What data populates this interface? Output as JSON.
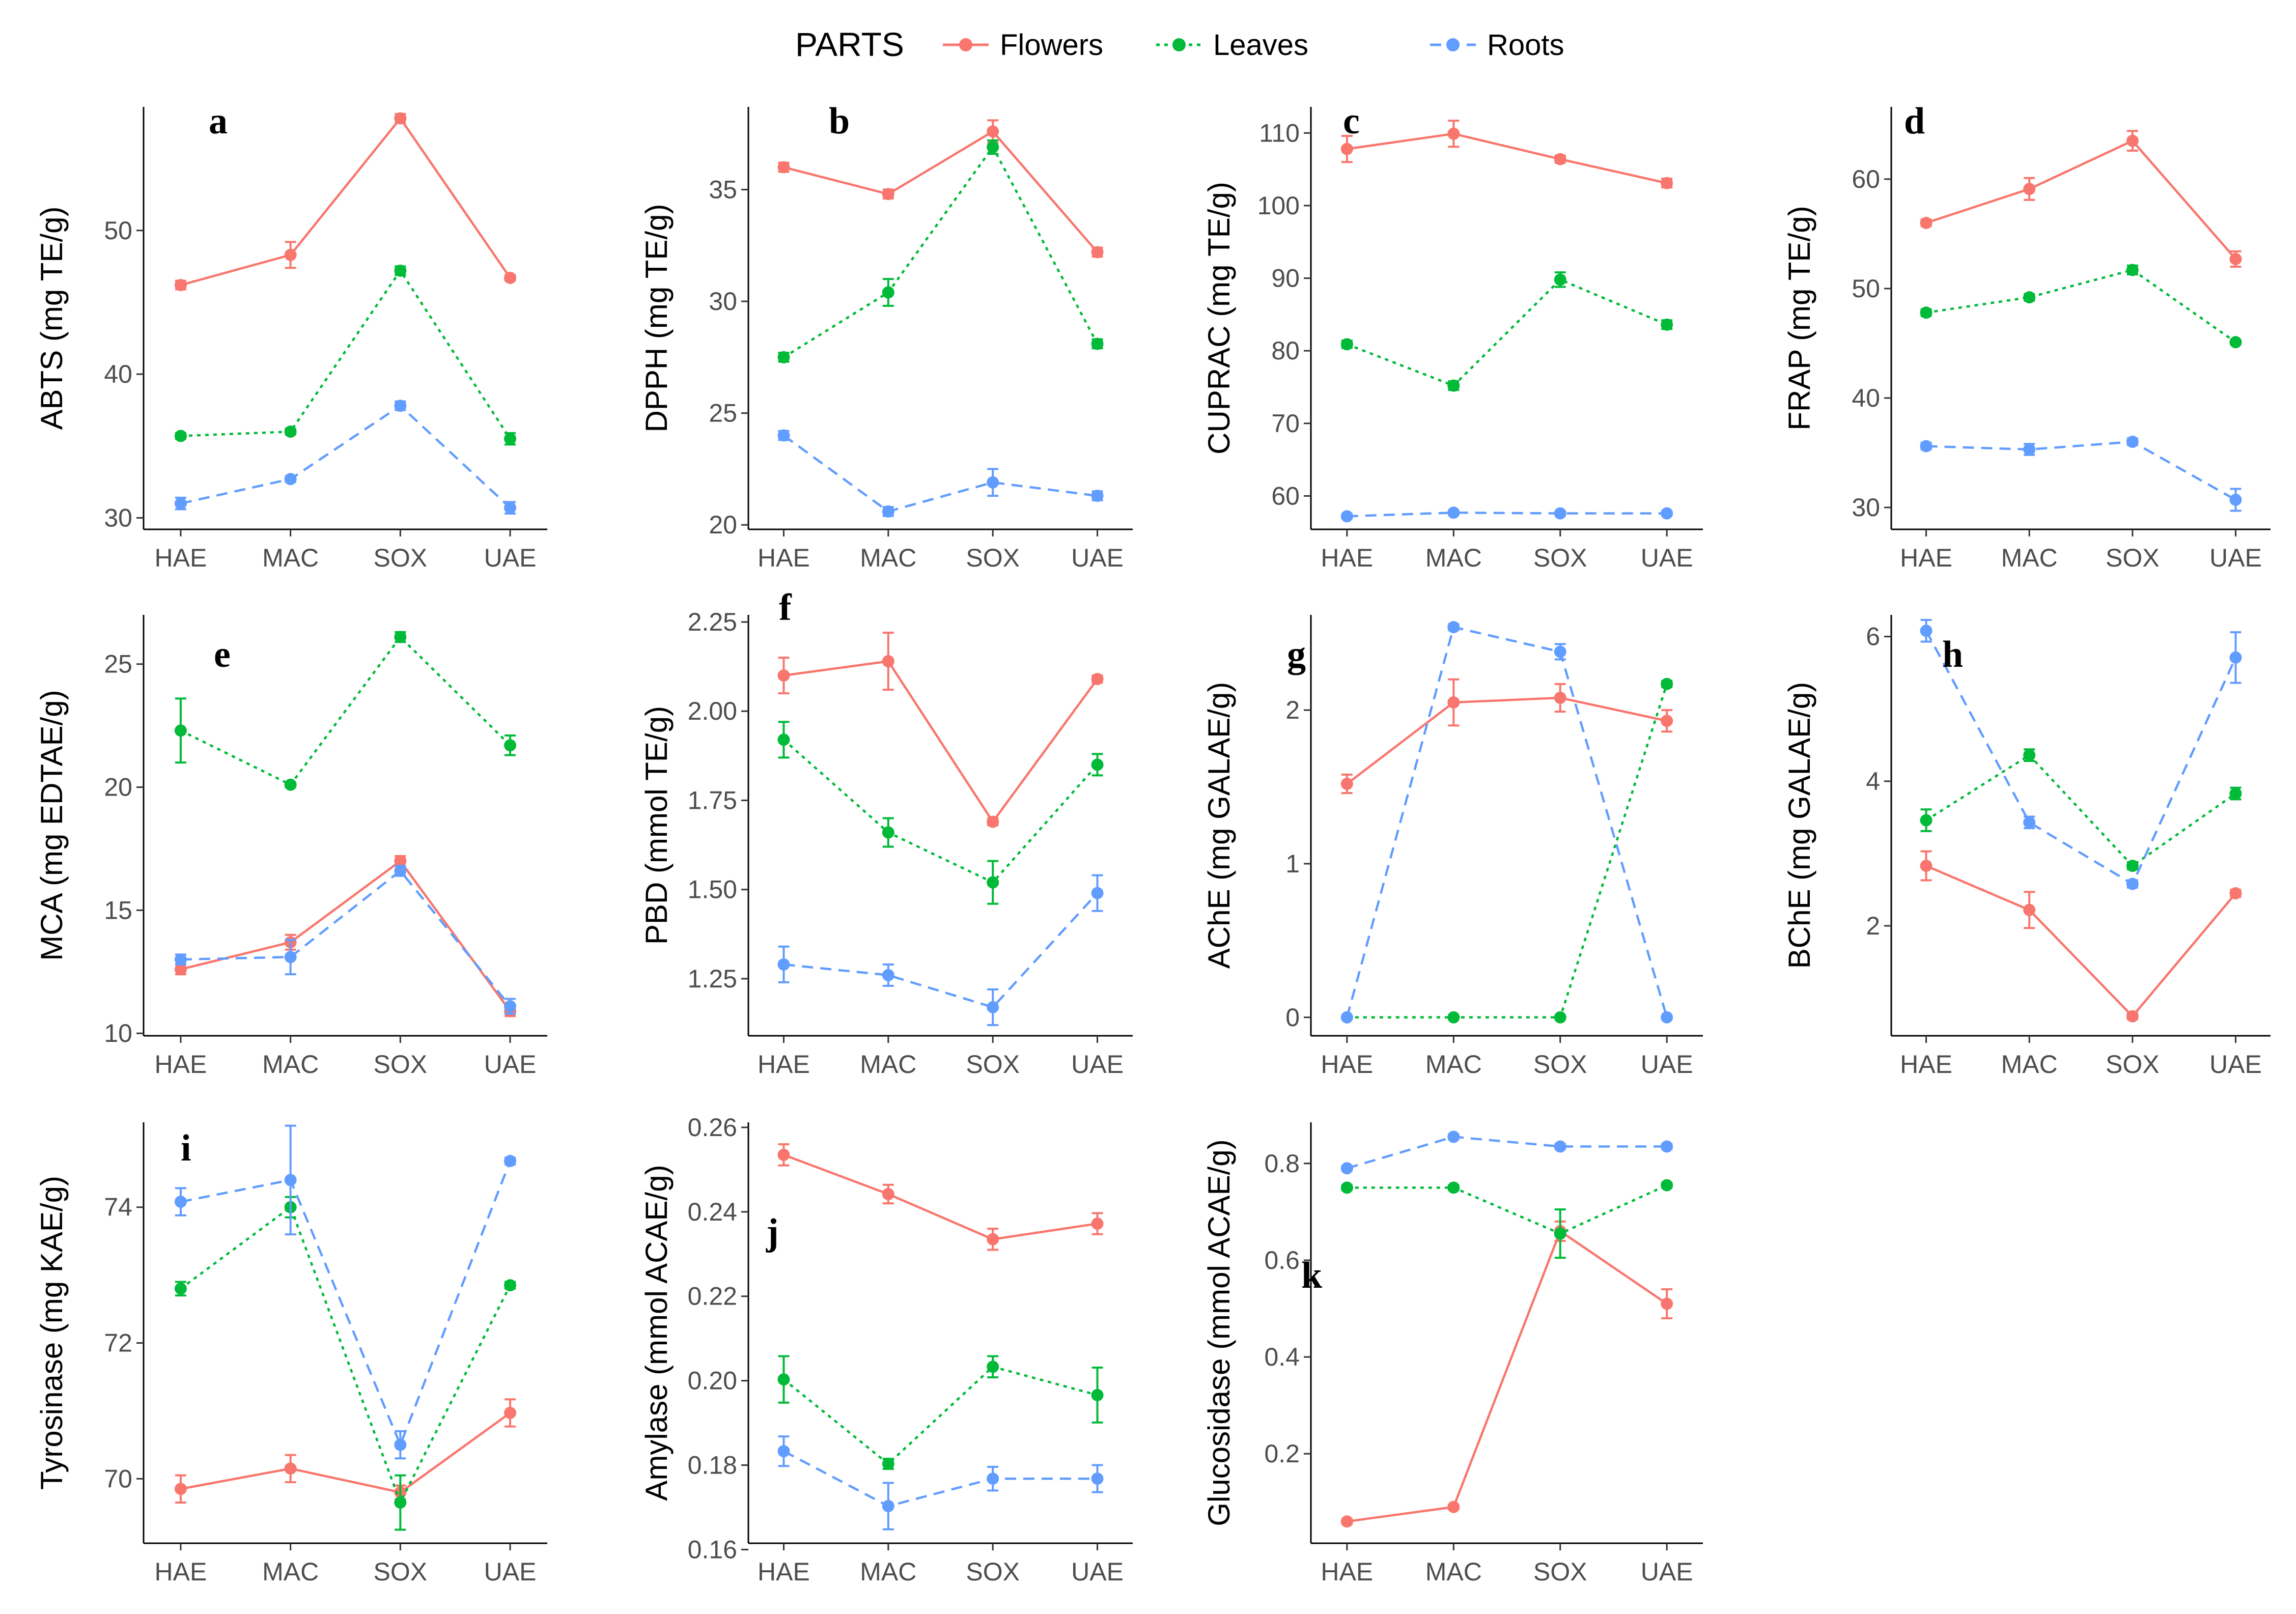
{
  "legend": {
    "title": "PARTS",
    "items": [
      {
        "key": "Flowers",
        "label": "Flowers",
        "color": "#F8766D",
        "dash": "solid"
      },
      {
        "key": "Leaves",
        "label": "Leaves",
        "color": "#00BA38",
        "dash": "dotted"
      },
      {
        "key": "Roots",
        "label": "Roots",
        "color": "#619CFF",
        "dash": "dashed"
      }
    ]
  },
  "chart_data": [
    {
      "type": "line",
      "panel": "a",
      "ylabel": "ABTS (mg TE/g)",
      "categories": [
        "HAE",
        "MAC",
        "SOX",
        "UAE"
      ],
      "ylim": [
        29.2,
        58.6
      ],
      "yticks": [
        30,
        40,
        50
      ],
      "series": [
        {
          "name": "Flowers",
          "values": [
            46.2,
            48.3,
            57.8,
            46.7
          ],
          "errors": [
            0.3,
            0.9,
            0.3,
            0.2
          ]
        },
        {
          "name": "Leaves",
          "values": [
            35.7,
            36.0,
            47.2,
            35.5
          ],
          "errors": [
            0.2,
            0.2,
            0.3,
            0.4
          ]
        },
        {
          "name": "Roots",
          "values": [
            31.0,
            32.7,
            37.8,
            30.7
          ],
          "errors": [
            0.4,
            0.2,
            0.3,
            0.4
          ]
        }
      ]
    },
    {
      "type": "line",
      "panel": "b",
      "ylabel": "DPPH (mg TE/g)",
      "categories": [
        "HAE",
        "MAC",
        "SOX",
        "UAE"
      ],
      "ylim": [
        19.8,
        38.7
      ],
      "yticks": [
        20,
        25,
        30,
        35
      ],
      "series": [
        {
          "name": "Flowers",
          "values": [
            36.0,
            34.8,
            37.6,
            32.2
          ],
          "errors": [
            0.2,
            0.2,
            0.5,
            0.2
          ]
        },
        {
          "name": "Leaves",
          "values": [
            27.5,
            30.4,
            36.9,
            28.1
          ],
          "errors": [
            0.2,
            0.6,
            0.3,
            0.2
          ]
        },
        {
          "name": "Roots",
          "values": [
            24.0,
            20.6,
            21.9,
            21.3
          ],
          "errors": [
            0.2,
            0.2,
            0.6,
            0.2
          ]
        }
      ]
    },
    {
      "type": "line",
      "panel": "c",
      "ylabel": "CUPRAC (mg TE/g)",
      "categories": [
        "HAE",
        "MAC",
        "SOX",
        "UAE"
      ],
      "ylim": [
        55.4,
        113.6
      ],
      "yticks": [
        60,
        70,
        80,
        90,
        100,
        110
      ],
      "series": [
        {
          "name": "Flowers",
          "values": [
            107.8,
            109.9,
            106.4,
            103.1
          ],
          "errors": [
            1.8,
            1.8,
            0.5,
            0.6
          ]
        },
        {
          "name": "Leaves",
          "values": [
            80.9,
            75.2,
            89.8,
            83.6
          ],
          "errors": [
            0.5,
            0.6,
            1.0,
            0.6
          ]
        },
        {
          "name": "Roots",
          "values": [
            57.2,
            57.7,
            57.6,
            57.6
          ],
          "errors": [
            0.3,
            0.3,
            0.3,
            0.3
          ]
        }
      ]
    },
    {
      "type": "line",
      "panel": "d",
      "ylabel": "FRAP (mg TE/g)",
      "categories": [
        "HAE",
        "MAC",
        "SOX",
        "UAE"
      ],
      "ylim": [
        28.0,
        66.6
      ],
      "yticks": [
        30,
        40,
        50,
        60
      ],
      "series": [
        {
          "name": "Flowers",
          "values": [
            56.0,
            59.1,
            63.5,
            52.7
          ],
          "errors": [
            0.3,
            1.0,
            0.9,
            0.7
          ]
        },
        {
          "name": "Leaves",
          "values": [
            47.8,
            49.2,
            51.7,
            45.1
          ],
          "errors": [
            0.3,
            0.3,
            0.4,
            0.2
          ]
        },
        {
          "name": "Roots",
          "values": [
            35.6,
            35.3,
            36.0,
            30.7
          ],
          "errors": [
            0.3,
            0.5,
            0.3,
            1.0
          ]
        }
      ]
    },
    {
      "type": "line",
      "panel": "e",
      "ylabel": "MCA (mg EDTAE/g)",
      "categories": [
        "HAE",
        "MAC",
        "SOX",
        "UAE"
      ],
      "ylim": [
        9.9,
        27.0
      ],
      "yticks": [
        10,
        15,
        20,
        25
      ],
      "series": [
        {
          "name": "Flowers",
          "values": [
            12.6,
            13.7,
            17.0,
            10.9
          ],
          "errors": [
            0.2,
            0.3,
            0.2,
            0.2
          ]
        },
        {
          "name": "Leaves",
          "values": [
            22.3,
            20.1,
            26.1,
            21.7
          ],
          "errors": [
            1.3,
            0.1,
            0.2,
            0.4
          ]
        },
        {
          "name": "Roots",
          "values": [
            13.0,
            13.1,
            16.6,
            11.1
          ],
          "errors": [
            0.2,
            0.7,
            0.2,
            0.3
          ]
        }
      ]
    },
    {
      "type": "line",
      "panel": "f",
      "ylabel": "PBD (mmol TE/g)",
      "categories": [
        "HAE",
        "MAC",
        "SOX",
        "UAE"
      ],
      "ylim": [
        1.09,
        2.27
      ],
      "yticks": [
        1.25,
        1.5,
        1.75,
        2.0,
        2.25
      ],
      "tick_labels": [
        "1.25",
        "1.50",
        "1.75",
        "2.00",
        "2.25"
      ],
      "series": [
        {
          "name": "Flowers",
          "values": [
            2.1,
            2.14,
            1.69,
            2.09
          ],
          "errors": [
            0.05,
            0.08,
            0.01,
            0.01
          ]
        },
        {
          "name": "Leaves",
          "values": [
            1.92,
            1.66,
            1.52,
            1.85
          ],
          "errors": [
            0.05,
            0.04,
            0.06,
            0.03
          ]
        },
        {
          "name": "Roots",
          "values": [
            1.29,
            1.26,
            1.17,
            1.49
          ],
          "errors": [
            0.05,
            0.03,
            0.05,
            0.05
          ]
        }
      ]
    },
    {
      "type": "line",
      "panel": "g",
      "ylabel": "AChE (mg GALAE/g)",
      "categories": [
        "HAE",
        "MAC",
        "SOX",
        "UAE"
      ],
      "ylim": [
        -0.12,
        2.62
      ],
      "yticks": [
        0,
        1,
        2
      ],
      "series": [
        {
          "name": "Flowers",
          "values": [
            1.52,
            2.05,
            2.08,
            1.93
          ],
          "errors": [
            0.06,
            0.15,
            0.09,
            0.07
          ]
        },
        {
          "name": "Leaves",
          "values": [
            0.0,
            0.0,
            0.0,
            2.17
          ],
          "errors": [
            0,
            0,
            0,
            0.02
          ]
        },
        {
          "name": "Roots",
          "values": [
            0.0,
            2.54,
            2.38,
            0.0
          ],
          "errors": [
            0,
            0.02,
            0.05,
            0
          ]
        }
      ]
    },
    {
      "type": "line",
      "panel": "h",
      "ylabel": "BChE (mg GALAE/g)",
      "categories": [
        "HAE",
        "MAC",
        "SOX",
        "UAE"
      ],
      "ylim": [
        0.48,
        6.3
      ],
      "yticks": [
        2,
        4,
        6
      ],
      "series": [
        {
          "name": "Flowers",
          "values": [
            2.83,
            2.22,
            0.75,
            2.45
          ],
          "errors": [
            0.2,
            0.25,
            0.04,
            0.05
          ]
        },
        {
          "name": "Leaves",
          "values": [
            3.46,
            4.36,
            2.83,
            3.83
          ],
          "errors": [
            0.15,
            0.08,
            0.05,
            0.08
          ]
        },
        {
          "name": "Roots",
          "values": [
            6.08,
            3.43,
            2.58,
            5.71
          ],
          "errors": [
            0.15,
            0.08,
            0.05,
            0.35
          ]
        }
      ]
    },
    {
      "type": "line",
      "panel": "i",
      "ylabel": "Tyrosinase (mg KAE/g)",
      "categories": [
        "HAE",
        "MAC",
        "SOX",
        "UAE"
      ],
      "ylim": [
        69.05,
        75.25
      ],
      "yticks": [
        70,
        72,
        74
      ],
      "series": [
        {
          "name": "Flowers",
          "values": [
            69.85,
            70.15,
            69.8,
            70.97
          ],
          "errors": [
            0.2,
            0.2,
            0.1,
            0.2
          ]
        },
        {
          "name": "Leaves",
          "values": [
            72.8,
            74.0,
            69.65,
            72.85
          ],
          "errors": [
            0.1,
            0.15,
            0.4,
            0.05
          ]
        },
        {
          "name": "Roots",
          "values": [
            74.08,
            74.4,
            70.5,
            74.68
          ],
          "errors": [
            0.2,
            0.8,
            0.2,
            0.05
          ]
        }
      ]
    },
    {
      "type": "line",
      "panel": "j",
      "ylabel": "Amylase (mmol ACAE/g)",
      "categories": [
        "HAE",
        "MAC",
        "SOX",
        "UAE"
      ],
      "ylim": [
        0.1615,
        0.2612
      ],
      "yticks": [
        0.16,
        0.18,
        0.2,
        0.22,
        0.24,
        0.26
      ],
      "tick_labels": [
        "0.16",
        "0.18",
        "0.20",
        "0.22",
        "0.24",
        "0.26"
      ],
      "series": [
        {
          "name": "Flowers",
          "values": [
            0.2535,
            0.2442,
            0.2335,
            0.2372
          ],
          "errors": [
            0.0025,
            0.0022,
            0.0025,
            0.0025
          ]
        },
        {
          "name": "Leaves",
          "values": [
            0.2003,
            0.1803,
            0.2033,
            0.1966
          ],
          "errors": [
            0.0055,
            0.0012,
            0.0025,
            0.0065
          ]
        },
        {
          "name": "Roots",
          "values": [
            0.1833,
            0.1703,
            0.1768,
            0.1768
          ],
          "errors": [
            0.0035,
            0.0055,
            0.0028,
            0.0032
          ]
        }
      ]
    },
    {
      "type": "line",
      "panel": "k",
      "ylabel": "Glucosidase (mmol ACAE/g)",
      "categories": [
        "HAE",
        "MAC",
        "SOX",
        "UAE"
      ],
      "ylim": [
        0.015,
        0.885
      ],
      "yticks": [
        0.2,
        0.4,
        0.6,
        0.8
      ],
      "tick_labels": [
        "0.2",
        "0.4",
        "0.6",
        "0.8"
      ],
      "series": [
        {
          "name": "Flowers",
          "values": [
            0.06,
            0.09,
            0.66,
            0.51
          ],
          "errors": [
            0.005,
            0.005,
            0.02,
            0.03
          ]
        },
        {
          "name": "Leaves",
          "values": [
            0.75,
            0.75,
            0.655,
            0.755
          ],
          "errors": [
            0.005,
            0.005,
            0.05,
            0.005
          ]
        },
        {
          "name": "Roots",
          "values": [
            0.79,
            0.855,
            0.835,
            0.835
          ],
          "errors": [
            0.005,
            0.005,
            0.005,
            0.005
          ]
        }
      ]
    }
  ]
}
